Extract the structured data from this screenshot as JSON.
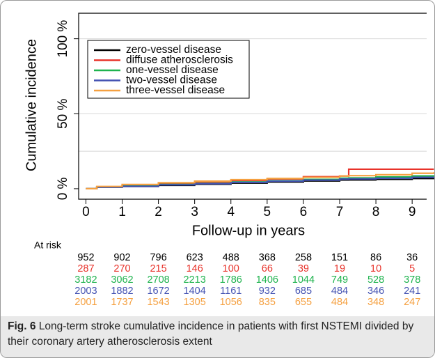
{
  "chart_data": {
    "type": "step",
    "y_label": "Cumulative incidence",
    "x_label": "Follow-up in years",
    "x": [
      0,
      0.3,
      1,
      2,
      3,
      4,
      5,
      6,
      7,
      7.25,
      8,
      9,
      9.6
    ],
    "series": [
      {
        "name": "zero-vessel disease",
        "color": "#000000",
        "values": [
          0,
          1,
          1.5,
          2.3,
          3,
          3.8,
          4.5,
          5.2,
          5.8,
          5.9,
          6.3,
          6.8,
          7
        ]
      },
      {
        "name": "diffuse atherosclerosis",
        "color": "#e8322a",
        "values": [
          0,
          1,
          2,
          3.5,
          4.5,
          5.5,
          6.5,
          8,
          8.5,
          13,
          13,
          13,
          13
        ]
      },
      {
        "name": "one-vessel disease",
        "color": "#1fb34e",
        "values": [
          0,
          1,
          1.8,
          2.8,
          3.5,
          4.5,
          5.3,
          6.2,
          7,
          7.2,
          7.8,
          8.5,
          9
        ]
      },
      {
        "name": "two-vessel disease",
        "color": "#4352b2",
        "values": [
          0,
          1,
          1.6,
          2.6,
          3.3,
          4.2,
          5,
          5.7,
          6.4,
          6.6,
          7,
          7.6,
          8
        ]
      },
      {
        "name": "three-vessel disease",
        "color": "#f5a040",
        "values": [
          0,
          1.5,
          2.8,
          4,
          5,
          6,
          6.8,
          7.6,
          8.5,
          8.7,
          9.3,
          10.3,
          11
        ]
      }
    ],
    "xlim": [
      -0.2,
      9.4
    ],
    "xticks": [
      0,
      1,
      2,
      3,
      4,
      5,
      6,
      7,
      8,
      9
    ],
    "ylim": [
      -7,
      117
    ],
    "yticks": [
      {
        "value": 0,
        "label": "0 %"
      },
      {
        "value": 50,
        "label": "50 %"
      },
      {
        "value": 100,
        "label": "100 %"
      }
    ],
    "grid_lines": [
      25,
      50,
      100
    ],
    "legend": "top-left",
    "at_risk": {
      "label": "At risk",
      "rows": [
        [
          952,
          902,
          796,
          623,
          488,
          368,
          258,
          151,
          86,
          36
        ],
        [
          287,
          270,
          215,
          146,
          100,
          66,
          39,
          19,
          10,
          5
        ],
        [
          3182,
          3062,
          2708,
          2213,
          1786,
          1406,
          1044,
          749,
          528,
          378
        ],
        [
          2003,
          1882,
          1672,
          1404,
          1161,
          932,
          685,
          484,
          346,
          241
        ],
        [
          2001,
          1737,
          1543,
          1305,
          1056,
          835,
          655,
          484,
          348,
          247
        ]
      ]
    }
  },
  "caption": {
    "label": "Fig. 6",
    "text": "Long-term stroke cumulative incidence in patients with first NSTEMI divided by their coronary artery atherosclerosis extent"
  }
}
